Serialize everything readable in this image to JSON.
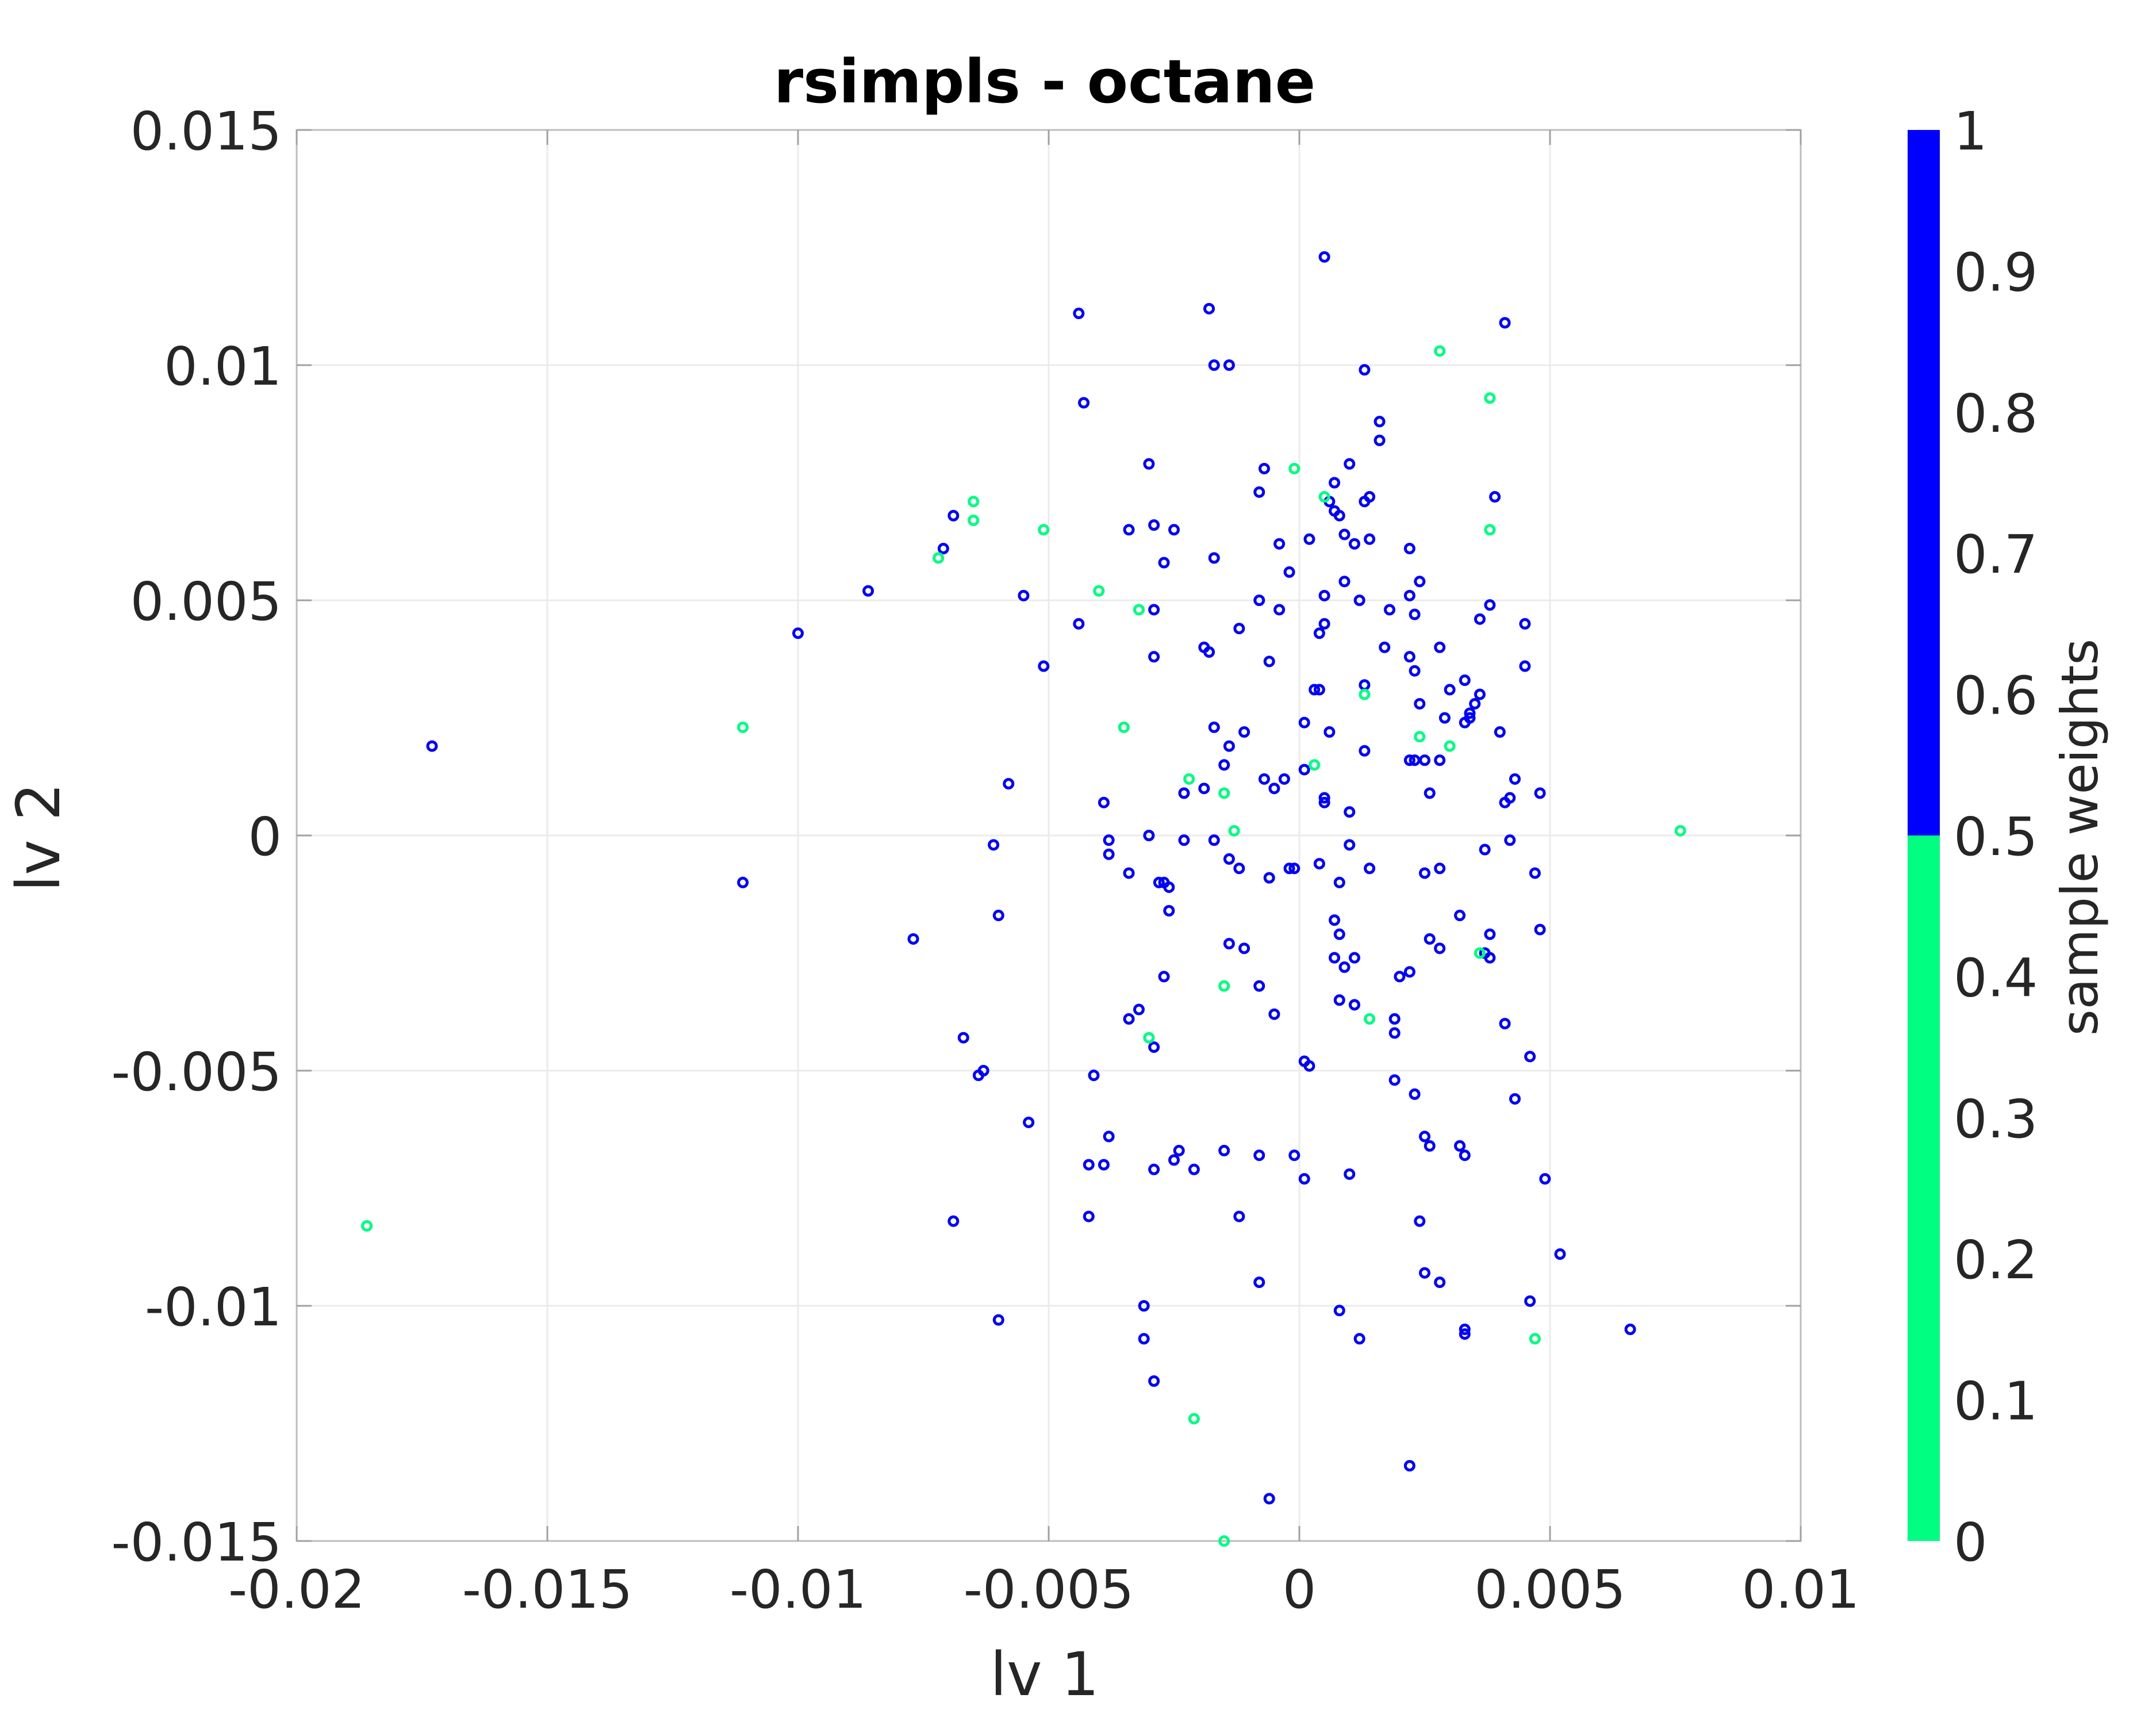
{
  "chart_data": {
    "type": "scatter",
    "title": "rsimpls - octane",
    "xlabel": "lv 1",
    "ylabel": "lv 2",
    "xlim": [
      -0.02,
      0.01
    ],
    "ylim": [
      -0.015,
      0.015
    ],
    "xticks": [
      "-0.02",
      "-0.015",
      "-0.01",
      "-0.005",
      "0",
      "0.005",
      "0.01"
    ],
    "yticks": [
      "0.015",
      "0.01",
      "0.005",
      "0",
      "-0.005",
      "-0.01",
      "-0.015"
    ],
    "grid": true,
    "colorbar": {
      "label": "sample weights",
      "ticks": [
        "1",
        "0.9",
        "0.8",
        "0.7",
        "0.6",
        "0.5",
        "0.4",
        "0.3",
        "0.2",
        "0.1",
        "0"
      ],
      "range": [
        0,
        1
      ],
      "colors": {
        "low": "#00ff80",
        "high": "#0000ff"
      },
      "threshold": 0.5
    },
    "series": [
      {
        "weight": 1,
        "color": "#0000ff",
        "points": [
          [
            0.0005,
            0.0123
          ],
          [
            0.0041,
            0.0109
          ],
          [
            -0.0044,
            0.0111
          ],
          [
            -0.0018,
            0.0112
          ],
          [
            -0.0017,
            0.01
          ],
          [
            -0.0014,
            0.01
          ],
          [
            0.0013,
            0.0099
          ],
          [
            -0.0043,
            0.0092
          ],
          [
            0.0016,
            0.0088
          ],
          [
            0.0016,
            0.0084
          ],
          [
            -0.003,
            0.0079
          ],
          [
            0.001,
            0.0079
          ],
          [
            -0.0007,
            0.0078
          ],
          [
            -0.0008,
            0.0073
          ],
          [
            0.0007,
            0.0075
          ],
          [
            0.0006,
            0.0071
          ],
          [
            0.0007,
            0.0069
          ],
          [
            0.0008,
            0.0068
          ],
          [
            0.0013,
            0.0071
          ],
          [
            0.0014,
            0.0072
          ],
          [
            0.0039,
            0.0072
          ],
          [
            -0.0069,
            0.0068
          ],
          [
            -0.0071,
            0.0061
          ],
          [
            -0.0034,
            0.0065
          ],
          [
            -0.0029,
            0.0066
          ],
          [
            -0.0025,
            0.0065
          ],
          [
            0.0002,
            0.0063
          ],
          [
            0.0009,
            0.0064
          ],
          [
            0.0011,
            0.0062
          ],
          [
            0.0014,
            0.0063
          ],
          [
            -0.0004,
            0.0062
          ],
          [
            0.0022,
            0.0061
          ],
          [
            -0.0027,
            0.0058
          ],
          [
            -0.0017,
            0.0059
          ],
          [
            -0.0002,
            0.0056
          ],
          [
            0.0009,
            0.0054
          ],
          [
            0.0024,
            0.0054
          ],
          [
            -0.0086,
            0.0052
          ],
          [
            -0.0055,
            0.0051
          ],
          [
            0.0005,
            0.0051
          ],
          [
            0.0012,
            0.005
          ],
          [
            0.0022,
            0.0051
          ],
          [
            0.0038,
            0.0049
          ],
          [
            -0.0008,
            0.005
          ],
          [
            -0.0029,
            0.0048
          ],
          [
            0.0018,
            0.0048
          ],
          [
            0.0023,
            0.0047
          ],
          [
            -0.0004,
            0.0048
          ],
          [
            -0.0044,
            0.0045
          ],
          [
            0.0036,
            0.0046
          ],
          [
            0.0045,
            0.0045
          ],
          [
            0.0005,
            0.0045
          ],
          [
            0.0004,
            0.0043
          ],
          [
            -0.0012,
            0.0044
          ],
          [
            -0.01,
            0.0043
          ],
          [
            0.0017,
            0.004
          ],
          [
            0.0028,
            0.004
          ],
          [
            -0.0019,
            0.004
          ],
          [
            -0.0018,
            0.0039
          ],
          [
            -0.0029,
            0.0038
          ],
          [
            0.0022,
            0.0038
          ],
          [
            -0.0006,
            0.0037
          ],
          [
            -0.0051,
            0.0036
          ],
          [
            0.0045,
            0.0036
          ],
          [
            0.0023,
            0.0035
          ],
          [
            0.0033,
            0.0033
          ],
          [
            0.0013,
            0.0032
          ],
          [
            0.0003,
            0.0031
          ],
          [
            0.0004,
            0.0031
          ],
          [
            0.003,
            0.0031
          ],
          [
            0.0036,
            0.003
          ],
          [
            0.0035,
            0.0028
          ],
          [
            0.0024,
            0.0028
          ],
          [
            0.0034,
            0.0026
          ],
          [
            0.0029,
            0.0025
          ],
          [
            0.0034,
            0.0025
          ],
          [
            0.0033,
            0.0024
          ],
          [
            -0.0017,
            0.0023
          ],
          [
            -0.0011,
            0.0022
          ],
          [
            0.0001,
            0.0024
          ],
          [
            0.0006,
            0.0022
          ],
          [
            0.004,
            0.0022
          ],
          [
            -0.0014,
            0.0019
          ],
          [
            0.0013,
            0.0018
          ],
          [
            0.0022,
            0.0016
          ],
          [
            0.0023,
            0.0016
          ],
          [
            0.0025,
            0.0016
          ],
          [
            0.0028,
            0.0016
          ],
          [
            -0.0015,
            0.0015
          ],
          [
            0.0001,
            0.0014
          ],
          [
            -0.0007,
            0.0012
          ],
          [
            -0.0003,
            0.0012
          ],
          [
            0.0043,
            0.0012
          ],
          [
            -0.0058,
            0.0011
          ],
          [
            -0.0019,
            0.001
          ],
          [
            -0.0023,
            0.0009
          ],
          [
            -0.0005,
            0.001
          ],
          [
            0.0026,
            0.0009
          ],
          [
            0.0048,
            0.0009
          ],
          [
            0.0042,
            0.0008
          ],
          [
            0.0005,
            0.0008
          ],
          [
            0.0005,
            0.0007
          ],
          [
            0.0041,
            0.0007
          ],
          [
            -0.0039,
            0.0007
          ],
          [
            0.001,
            0.0005
          ],
          [
            -0.003,
            0.0
          ],
          [
            -0.0023,
            -0.0001
          ],
          [
            -0.0017,
            -0.0001
          ],
          [
            -0.0038,
            -0.0001
          ],
          [
            -0.0061,
            -0.0002
          ],
          [
            0.001,
            -0.0002
          ],
          [
            0.0042,
            -0.0001
          ],
          [
            0.0037,
            -0.0003
          ],
          [
            -0.0038,
            -0.0004
          ],
          [
            -0.0014,
            -0.0005
          ],
          [
            -0.0012,
            -0.0007
          ],
          [
            0.0004,
            -0.0006
          ],
          [
            -0.0002,
            -0.0007
          ],
          [
            -0.0001,
            -0.0007
          ],
          [
            -0.0034,
            -0.0008
          ],
          [
            -0.0006,
            -0.0009
          ],
          [
            0.0014,
            -0.0007
          ],
          [
            0.0028,
            -0.0007
          ],
          [
            0.0025,
            -0.0008
          ],
          [
            0.0047,
            -0.0008
          ],
          [
            -0.0028,
            -0.001
          ],
          [
            -0.0027,
            -0.001
          ],
          [
            -0.0026,
            -0.0011
          ],
          [
            0.0008,
            -0.001
          ],
          [
            -0.006,
            -0.0017
          ],
          [
            -0.0026,
            -0.0016
          ],
          [
            0.0032,
            -0.0017
          ],
          [
            0.0007,
            -0.0018
          ],
          [
            0.0008,
            -0.0021
          ],
          [
            0.0026,
            -0.0022
          ],
          [
            0.0038,
            -0.0021
          ],
          [
            0.0048,
            -0.002
          ],
          [
            -0.0077,
            -0.0022
          ],
          [
            -0.0014,
            -0.0023
          ],
          [
            -0.0011,
            -0.0024
          ],
          [
            0.0028,
            -0.0024
          ],
          [
            0.0037,
            -0.0025
          ],
          [
            0.0007,
            -0.0026
          ],
          [
            0.0011,
            -0.0026
          ],
          [
            0.0038,
            -0.0026
          ],
          [
            0.0009,
            -0.0028
          ],
          [
            0.0022,
            -0.0029
          ],
          [
            -0.0027,
            -0.003
          ],
          [
            0.002,
            -0.003
          ],
          [
            -0.0008,
            -0.0032
          ],
          [
            0.0008,
            -0.0035
          ],
          [
            0.0011,
            -0.0036
          ],
          [
            -0.0032,
            -0.0037
          ],
          [
            -0.0034,
            -0.0039
          ],
          [
            -0.0005,
            -0.0038
          ],
          [
            0.0019,
            -0.0039
          ],
          [
            0.0041,
            -0.004
          ],
          [
            0.0019,
            -0.0042
          ],
          [
            -0.0067,
            -0.0043
          ],
          [
            -0.0029,
            -0.0045
          ],
          [
            0.0046,
            -0.0047
          ],
          [
            0.0001,
            -0.0048
          ],
          [
            0.0002,
            -0.0049
          ],
          [
            -0.0063,
            -0.005
          ],
          [
            -0.0064,
            -0.0051
          ],
          [
            -0.0041,
            -0.0051
          ],
          [
            0.0019,
            -0.0052
          ],
          [
            0.0023,
            -0.0055
          ],
          [
            0.0043,
            -0.0056
          ],
          [
            -0.0054,
            -0.0061
          ],
          [
            -0.0038,
            -0.0064
          ],
          [
            0.0025,
            -0.0064
          ],
          [
            0.0026,
            -0.0066
          ],
          [
            0.0032,
            -0.0066
          ],
          [
            0.0033,
            -0.0068
          ],
          [
            -0.0024,
            -0.0067
          ],
          [
            -0.0015,
            -0.0067
          ],
          [
            -0.0025,
            -0.0069
          ],
          [
            -0.0008,
            -0.0068
          ],
          [
            -0.0001,
            -0.0068
          ],
          [
            -0.0042,
            -0.007
          ],
          [
            -0.0039,
            -0.007
          ],
          [
            -0.0029,
            -0.0071
          ],
          [
            -0.0021,
            -0.0071
          ],
          [
            0.0001,
            -0.0073
          ],
          [
            0.001,
            -0.0072
          ],
          [
            0.0049,
            -0.0073
          ],
          [
            -0.0042,
            -0.0081
          ],
          [
            -0.0069,
            -0.0082
          ],
          [
            -0.0012,
            -0.0081
          ],
          [
            0.0024,
            -0.0082
          ],
          [
            0.0052,
            -0.0089
          ],
          [
            0.0025,
            -0.0093
          ],
          [
            0.0028,
            -0.0095
          ],
          [
            -0.0008,
            -0.0095
          ],
          [
            -0.0031,
            -0.01
          ],
          [
            0.0046,
            -0.0099
          ],
          [
            0.0008,
            -0.0101
          ],
          [
            -0.006,
            -0.0103
          ],
          [
            0.0033,
            -0.0105
          ],
          [
            0.0033,
            -0.0106
          ],
          [
            0.0066,
            -0.0105
          ],
          [
            -0.0031,
            -0.0107
          ],
          [
            0.0012,
            -0.0107
          ],
          [
            -0.0029,
            -0.0116
          ],
          [
            0.0022,
            -0.0134
          ],
          [
            -0.0006,
            -0.0141
          ]
        ]
      },
      {
        "weight": 0,
        "color": "#00ff80",
        "points": [
          [
            0.0028,
            0.0103
          ],
          [
            0.0038,
            0.0093
          ],
          [
            -0.0001,
            0.0078
          ],
          [
            -0.0065,
            0.0071
          ],
          [
            0.0005,
            0.0072
          ],
          [
            -0.0065,
            0.0067
          ],
          [
            -0.0051,
            0.0065
          ],
          [
            0.0038,
            0.0065
          ],
          [
            -0.0072,
            0.0059
          ],
          [
            -0.004,
            0.0052
          ],
          [
            -0.0032,
            0.0048
          ],
          [
            0.0013,
            0.003
          ],
          [
            -0.0111,
            0.0023
          ],
          [
            -0.0035,
            0.0023
          ],
          [
            0.0024,
            0.0021
          ],
          [
            0.003,
            0.0019
          ],
          [
            0.0003,
            0.0015
          ],
          [
            -0.0022,
            0.0012
          ],
          [
            -0.0015,
            0.0009
          ],
          [
            -0.0013,
            0.0001
          ],
          [
            0.0076,
            0.0001
          ],
          [
            0.0036,
            -0.0025
          ],
          [
            -0.0015,
            -0.0032
          ],
          [
            0.0014,
            -0.0039
          ],
          [
            -0.003,
            -0.0043
          ],
          [
            -0.0186,
            -0.0083
          ],
          [
            0.0047,
            -0.0107
          ],
          [
            -0.0021,
            -0.0124
          ],
          [
            -0.0015,
            -0.015
          ]
        ]
      },
      {
        "weight": 1,
        "color": "#0000ff",
        "points": [
          [
            -0.0173,
            0.0019
          ],
          [
            -0.0111,
            -0.001
          ]
        ]
      }
    ]
  }
}
